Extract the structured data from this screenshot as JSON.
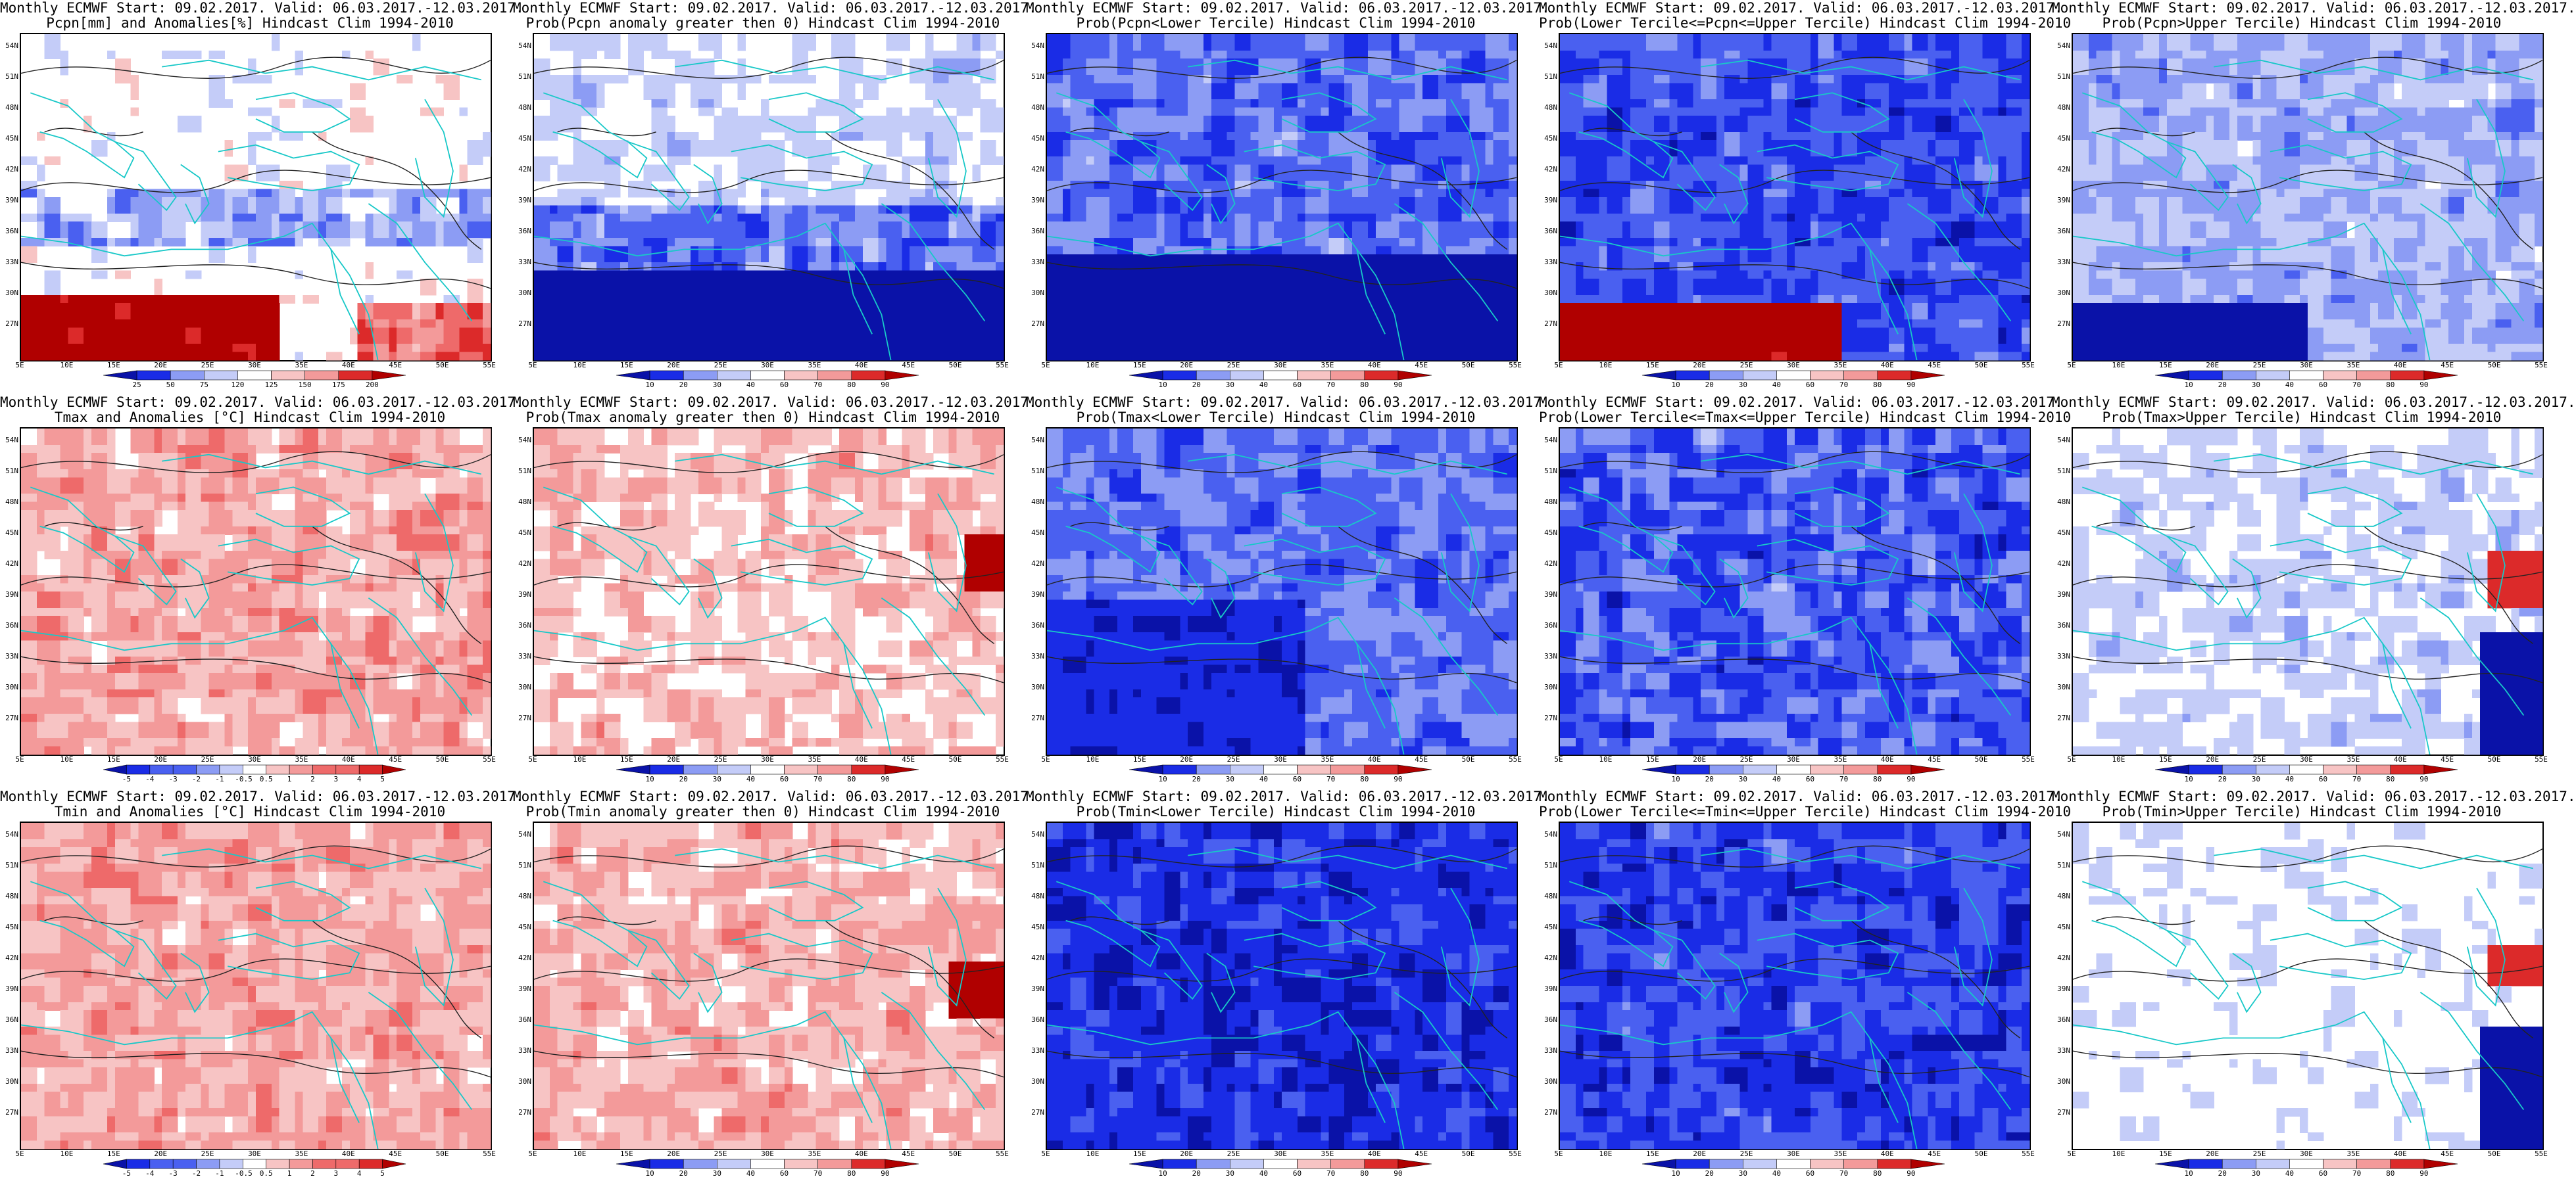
{
  "colors": {
    "coast": "#18c8c8",
    "contour": "#222222",
    "blue_ramp": [
      "#0a12a8",
      "#1a2ce6",
      "#4a60f0",
      "#8c9cf4",
      "#c4ccf8",
      "#ffffff"
    ],
    "red_ramp": [
      "#ffffff",
      "#f7c4c4",
      "#f39a9a",
      "#ee6a6a",
      "#dc2a2a",
      "#b00000"
    ]
  },
  "axes": {
    "y_labels": [
      "54N",
      "51N",
      "48N",
      "45N",
      "42N",
      "39N",
      "36N",
      "33N",
      "30N",
      "27N"
    ],
    "x_labels": [
      "5E",
      "10E",
      "15E",
      "20E",
      "25E",
      "30E",
      "35E",
      "40E",
      "45E",
      "50E",
      "55E"
    ]
  },
  "colorbars": {
    "precip_anom": [
      "25",
      "50",
      "75",
      "120",
      "125",
      "150",
      "175",
      "200"
    ],
    "temp_anom": [
      "-5",
      "-4",
      "-3",
      "-2",
      "-1",
      "-0.5",
      "0.5",
      "1",
      "2",
      "3",
      "4",
      "5"
    ],
    "prob": [
      "10",
      "20",
      "30",
      "40",
      "60",
      "70",
      "80",
      "90"
    ]
  },
  "panels": [
    {
      "id": "p1",
      "line1": "Monthly ECMWF Start: 09.02.2017. Valid: 06.03.2017.-12.03.2017.",
      "line2": "Pcpn[mm] and Anomalies[%] Hindcast Clim 1994-2010",
      "bar": "precip_anom"
    },
    {
      "id": "p2",
      "line1": "Monthly ECMWF Start: 09.02.2017. Valid: 06.03.2017.-12.03.2017.",
      "line2": "Prob(Pcpn anomaly greater then 0) Hindcast Clim 1994-2010",
      "bar": "prob"
    },
    {
      "id": "p3",
      "line1": "Monthly ECMWF Start: 09.02.2017. Valid: 06.03.2017.-12.03.2017.",
      "line2": "Prob(Pcpn<Lower Tercile) Hindcast Clim 1994-2010",
      "bar": "prob"
    },
    {
      "id": "p4",
      "line1": "Monthly ECMWF Start: 09.02.2017. Valid: 06.03.2017.-12.03.2017.",
      "line2": "Prob(Lower Tercile<=Pcpn<=Upper Tercile) Hindcast Clim 1994-2010",
      "bar": "prob"
    },
    {
      "id": "p5",
      "line1": "Monthly ECMWF Start: 09.02.2017. Valid: 06.03.2017.-12.03.2017.",
      "line2": "Prob(Pcpn>Upper Tercile) Hindcast Clim 1994-2010",
      "bar": "prob"
    },
    {
      "id": "p6",
      "line1": "Monthly ECMWF Start: 09.02.2017. Valid: 06.03.2017.-12.03.2017.",
      "line2": "Tmax and Anomalies [°C] Hindcast Clim 1994-2010",
      "bar": "temp_anom"
    },
    {
      "id": "p7",
      "line1": "Monthly ECMWF Start: 09.02.2017. Valid: 06.03.2017.-12.03.2017.",
      "line2": "Prob(Tmax anomaly greater then 0) Hindcast Clim 1994-2010",
      "bar": "prob"
    },
    {
      "id": "p8",
      "line1": "Monthly ECMWF Start: 09.02.2017. Valid: 06.03.2017.-12.03.2017.",
      "line2": "Prob(Tmax<Lower Tercile) Hindcast Clim 1994-2010",
      "bar": "prob"
    },
    {
      "id": "p9",
      "line1": "Monthly ECMWF Start: 09.02.2017. Valid: 06.03.2017.-12.03.2017.",
      "line2": "Prob(Lower Tercile<=Tmax<=Upper Tercile) Hindcast Clim 1994-2010",
      "bar": "prob"
    },
    {
      "id": "p10",
      "line1": "Monthly ECMWF Start: 09.02.2017. Valid: 06.03.2017.-12.03.2017.",
      "line2": "Prob(Tmax>Upper Tercile) Hindcast Clim 1994-2010",
      "bar": "prob"
    },
    {
      "id": "p11",
      "line1": "Monthly ECMWF Start: 09.02.2017. Valid: 06.03.2017.-12.03.2017.",
      "line2": "Tmin and Anomalies [°C] Hindcast Clim 1994-2010",
      "bar": "temp_anom"
    },
    {
      "id": "p12",
      "line1": "Monthly ECMWF Start: 09.02.2017. Valid: 06.03.2017.-12.03.2017.",
      "line2": "Prob(Tmin anomaly greater then 0) Hindcast Clim 1994-2010",
      "bar": "prob"
    },
    {
      "id": "p13",
      "line1": "Monthly ECMWF Start: 09.02.2017. Valid: 06.03.2017.-12.03.2017.",
      "line2": "Prob(Tmin<Lower Tercile) Hindcast Clim 1994-2010",
      "bar": "prob"
    },
    {
      "id": "p14",
      "line1": "Monthly ECMWF Start: 09.02.2017. Valid: 06.03.2017.-12.03.2017.",
      "line2": "Prob(Lower Tercile<=Tmin<=Upper Tercile) Hindcast Clim 1994-2010",
      "bar": "prob"
    },
    {
      "id": "p15",
      "line1": "Monthly ECMWF Start: 09.02.2017. Valid: 06.03.2017.-12.03.2017.",
      "line2": "Prob(Tmin>Upper Tercile) Hindcast Clim 1994-2010",
      "bar": "prob"
    }
  ]
}
